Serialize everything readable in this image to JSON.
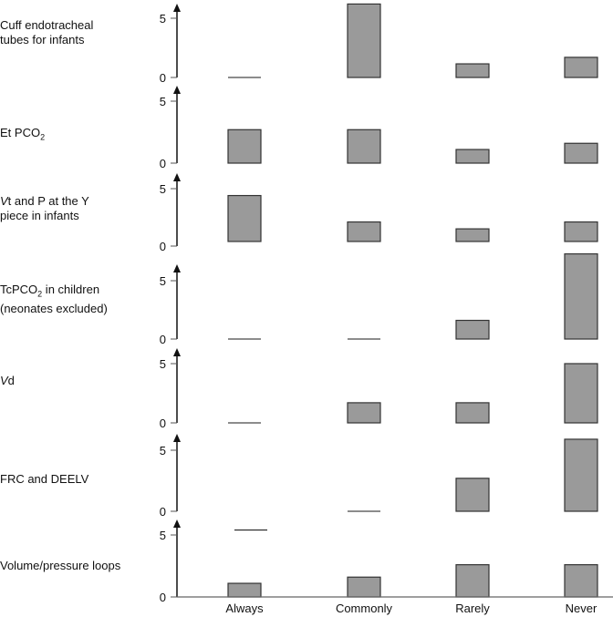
{
  "chart_data": {
    "type": "bar",
    "subtype": "floating-range-small-multiples",
    "categories": [
      "Always",
      "Commonly",
      "Rarely",
      "Never"
    ],
    "ylim": [
      0,
      6.5
    ],
    "yticks": [
      "0",
      "5"
    ],
    "colors": {
      "bar_fill": "#9a9a9a",
      "bar_stroke": "#333333",
      "axis": "#111111"
    },
    "panels": [
      {
        "label_html": "Cuff endotracheal\ntubes  for infants",
        "label_parts": [
          {
            "t": "Cuff endotracheal"
          },
          {
            "br": true
          },
          {
            "t": "tubes  for infants"
          }
        ],
        "ranges": [
          [
            0,
            0
          ],
          [
            0,
            6.2
          ],
          [
            0,
            1.15
          ],
          [
            0,
            1.7
          ]
        ],
        "extra_lines": []
      },
      {
        "label_parts": [
          {
            "t": "Et PCO"
          },
          {
            "sub": "2"
          }
        ],
        "ranges": [
          [
            0,
            2.7
          ],
          [
            0,
            2.7
          ],
          [
            0,
            1.1
          ],
          [
            0,
            1.6
          ]
        ],
        "extra_lines": []
      },
      {
        "label_parts": [
          {
            "i": "V"
          },
          {
            "t": "t and P at the Y"
          },
          {
            "br": true
          },
          {
            "t": "piece in infants"
          }
        ],
        "ranges": [
          [
            0.4,
            4.4
          ],
          [
            0.4,
            2.1
          ],
          [
            0.4,
            1.5
          ],
          [
            0.4,
            2.1
          ]
        ],
        "extra_lines": []
      },
      {
        "label_parts": [
          {
            "t": "TcPCO"
          },
          {
            "sub": "2"
          },
          {
            "t": " in children"
          },
          {
            "br": true
          },
          {
            "t": "(neonates excluded)"
          }
        ],
        "ranges": [
          [
            0,
            0
          ],
          [
            0,
            0
          ],
          [
            0,
            1.6
          ],
          [
            0,
            7.3
          ]
        ],
        "extra_lines": []
      },
      {
        "label_parts": [
          {
            "i": "V"
          },
          {
            "t": "d"
          }
        ],
        "ranges": [
          [
            0,
            0
          ],
          [
            0,
            1.7
          ],
          [
            0,
            1.7
          ],
          [
            0,
            5.0
          ]
        ],
        "extra_lines": []
      },
      {
        "label_parts": [
          {
            "t": "FRC and DEELV"
          }
        ],
        "ranges": [
          null,
          [
            0,
            0
          ],
          [
            0,
            2.7
          ],
          [
            0,
            5.9
          ]
        ],
        "extra_lines": []
      },
      {
        "label_parts": [
          {
            "t": "Volume/pressure loops"
          }
        ],
        "ranges": [
          [
            0,
            1.1
          ],
          [
            0,
            1.6
          ],
          [
            0,
            2.6
          ],
          [
            0,
            2.6
          ]
        ],
        "extra_lines": [
          {
            "category": 0,
            "value": 5.4
          }
        ]
      }
    ]
  }
}
